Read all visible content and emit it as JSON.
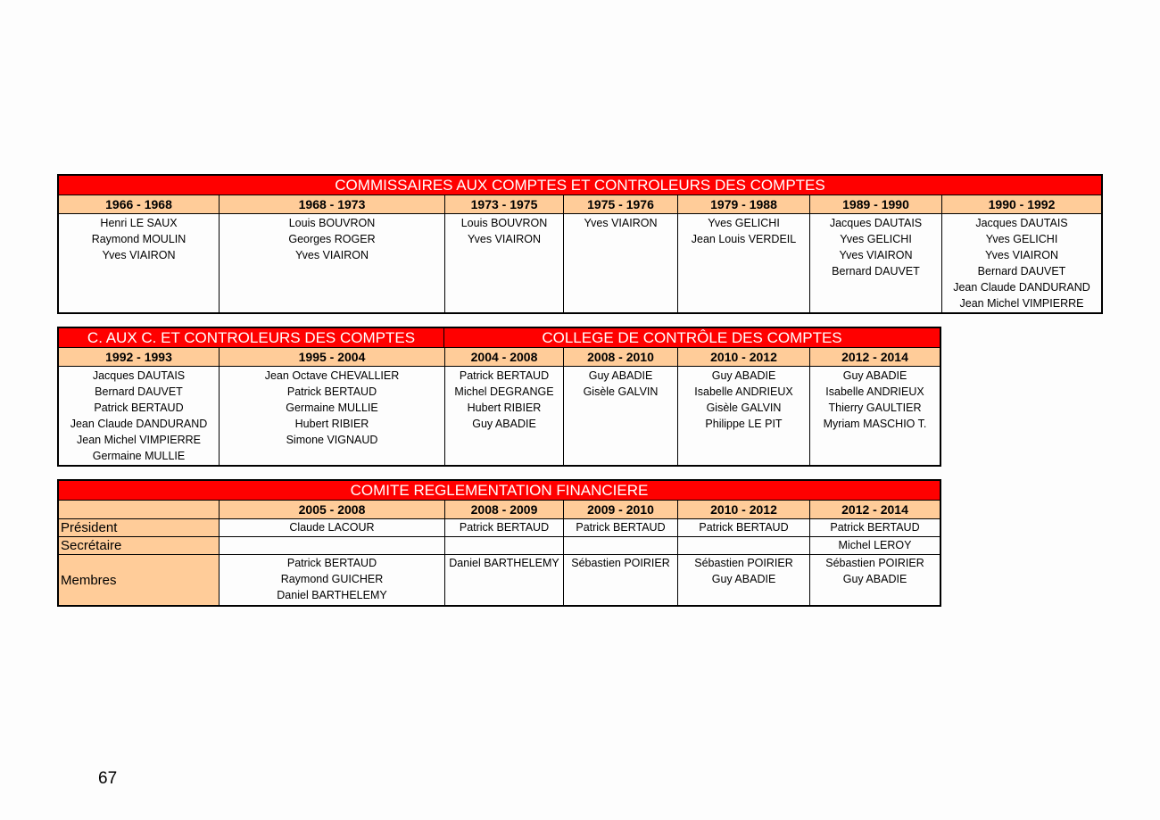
{
  "table1": {
    "title": "COMMISSAIRES AUX COMPTES ET CONTROLEURS DES COMPTES",
    "columns": [
      {
        "period": "1966 - 1968",
        "names": [
          "Henri LE SAUX",
          "Raymond MOULIN",
          "Yves VIAIRON"
        ]
      },
      {
        "period": "1968 - 1973",
        "names": [
          "Louis BOUVRON",
          "Georges ROGER",
          "Yves VIAIRON"
        ]
      },
      {
        "period": "1973 - 1975",
        "names": [
          "Louis BOUVRON",
          "Yves VIAIRON"
        ]
      },
      {
        "period": "1975 - 1976",
        "names": [
          "Yves VIAIRON"
        ]
      },
      {
        "period": "1979 - 1988",
        "names": [
          "Yves GELICHI",
          "Jean Louis VERDEIL"
        ]
      },
      {
        "period": "1989 - 1990",
        "names": [
          "Jacques DAUTAIS",
          "Yves GELICHI",
          "Yves VIAIRON",
          "Bernard DAUVET"
        ]
      },
      {
        "period": "1990 - 1992",
        "names": [
          "Jacques DAUTAIS",
          "Yves GELICHI",
          "Yves VIAIRON",
          "Bernard DAUVET",
          "Jean Claude DANDURAND",
          "Jean Michel VIMPIERRE"
        ]
      }
    ]
  },
  "table2": {
    "title_left": "C. AUX C. ET CONTROLEURS DES COMPTES",
    "title_right": "COLLEGE DE CONTRÔLE DES COMPTES",
    "columns": [
      {
        "period": "1992 - 1993",
        "names": [
          "Jacques DAUTAIS",
          "Bernard DAUVET",
          "Patrick BERTAUD",
          "Jean Claude DANDURAND",
          "Jean Michel VIMPIERRE",
          "Germaine MULLIE"
        ]
      },
      {
        "period": "1995 - 2004",
        "names": [
          "Jean Octave CHEVALLIER",
          "Patrick BERTAUD",
          "Germaine MULLIE",
          "Hubert RIBIER",
          "Simone VIGNAUD"
        ]
      },
      {
        "period": "2004 - 2008",
        "names": [
          "Patrick BERTAUD",
          "Michel DEGRANGE",
          "Hubert RIBIER",
          "Guy ABADIE"
        ]
      },
      {
        "period": "2008 - 2010",
        "names": [
          "Guy ABADIE",
          "Gisèle GALVIN"
        ]
      },
      {
        "period": "2010 - 2012",
        "names": [
          "Guy ABADIE",
          "Isabelle ANDRIEUX",
          "Gisèle GALVIN",
          "Philippe LE PIT"
        ]
      },
      {
        "period": "2012 - 2014",
        "names": [
          "Guy ABADIE",
          "Isabelle ANDRIEUX",
          "Thierry GAULTIER",
          "Myriam MASCHIO T."
        ]
      }
    ]
  },
  "table3": {
    "title": "COMITE REGLEMENTATION FINANCIERE",
    "periods": [
      "2005 - 2008",
      "2008 - 2009",
      "2009 - 2010",
      "2010 - 2012",
      "2012 - 2014"
    ],
    "rows": [
      {
        "label": "Président",
        "cells": [
          [
            "Claude LACOUR"
          ],
          [
            "Patrick BERTAUD"
          ],
          [
            "Patrick BERTAUD"
          ],
          [
            "Patrick BERTAUD"
          ],
          [
            "Patrick BERTAUD"
          ]
        ]
      },
      {
        "label": "Secrétaire",
        "cells": [
          [],
          [],
          [],
          [],
          [
            "Michel LEROY"
          ]
        ]
      },
      {
        "label": "Membres",
        "cells": [
          [
            "Patrick BERTAUD",
            "Raymond GUICHER",
            "Daniel BARTHELEMY"
          ],
          [
            "Daniel BARTHELEMY"
          ],
          [
            "Sébastien POIRIER"
          ],
          [
            "Sébastien POIRIER",
            "Guy ABADIE"
          ],
          [
            "Sébastien POIRIER",
            "Guy ABADIE"
          ]
        ]
      }
    ]
  },
  "page_number": "67"
}
